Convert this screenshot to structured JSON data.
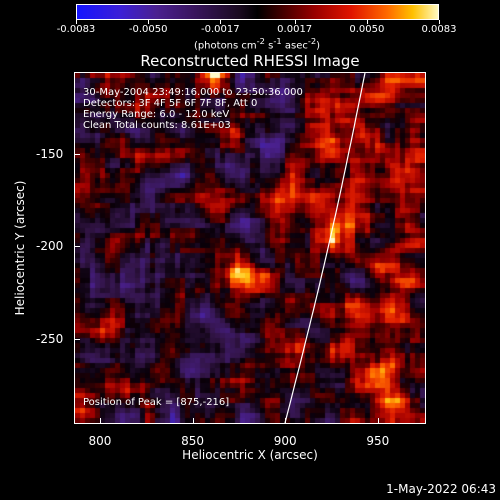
{
  "colorbar": {
    "ticks": [
      "-0.0083",
      "-0.0050",
      "-0.0017",
      "0.0017",
      "0.0050",
      "0.0083"
    ],
    "tick_values": [
      -0.0083,
      -0.005,
      -0.0017,
      0.0017,
      0.005,
      0.0083
    ],
    "units_prefix": "(photons cm",
    "units_sup1": "-2",
    "units_mid": " s",
    "units_sup2": "-1",
    "units_mid2": " asec",
    "units_sup3": "-2",
    "units_suffix": ")"
  },
  "title": "Reconstructed RHESSI Image",
  "annotations": {
    "time": "30-May-2004 23:49:16.000 to 23:50:36.000",
    "detectors": "Detectors: 3F 4F 5F 6F 7F 8F, Att 0",
    "energy": "Energy Range: 6.0 - 12.0 keV",
    "clean": "Clean    Total counts: 8.61E+03",
    "peak": "Position of Peak = [875,-216]"
  },
  "axes": {
    "xlabel": "Heliocentric X (arcsec)",
    "ylabel": "Heliocentric Y (arcsec)",
    "xticks": [
      "800",
      "850",
      "900",
      "950"
    ],
    "xtick_values": [
      800,
      850,
      900,
      950
    ],
    "yticks": [
      "-150",
      "-200",
      "-250"
    ],
    "ytick_values": [
      -150,
      -200,
      -250
    ],
    "xlim": [
      786,
      976
    ],
    "ylim": [
      -296,
      -106
    ]
  },
  "image": {
    "peaks": [
      {
        "x": 875,
        "y": -216,
        "amp": 1.0
      },
      {
        "x": 891,
        "y": -176,
        "amp": 0.75
      },
      {
        "x": 918,
        "y": -143,
        "amp": 0.6
      },
      {
        "x": 940,
        "y": -230,
        "amp": 0.45
      },
      {
        "x": 955,
        "y": -270,
        "amp": 0.45
      },
      {
        "x": 930,
        "y": -190,
        "amp": 0.4
      }
    ],
    "limb_color": "#ffffff"
  },
  "timestamp": "1-May-2022 06:43"
}
